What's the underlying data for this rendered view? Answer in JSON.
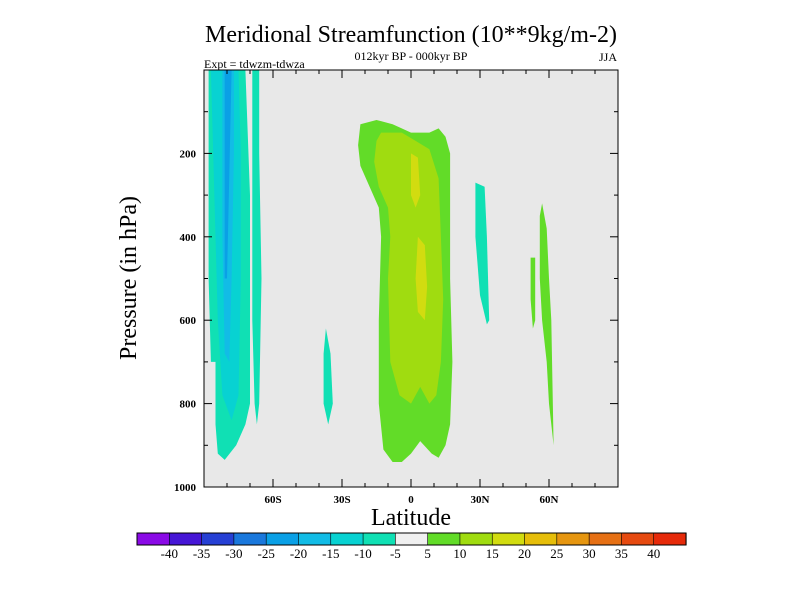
{
  "chart_data": {
    "type": "heatmap",
    "title": "Meridional Streamfunction (10**9kg/m-2)",
    "subtitle": "012kyr BP - 000kyr BP",
    "season": "JJA",
    "experiment": "Expt = tdwzm-tdwza",
    "xlabel": "Latitude",
    "ylabel": "Pressure (in hPa)",
    "xlim": [
      -90,
      90
    ],
    "ylim": [
      1000,
      0
    ],
    "x_ticks": [
      {
        "value": -60,
        "label": "60S"
      },
      {
        "value": -30,
        "label": "30S"
      },
      {
        "value": 0,
        "label": "0"
      },
      {
        "value": 30,
        "label": "30N"
      },
      {
        "value": 60,
        "label": "60N"
      }
    ],
    "y_ticks": [
      {
        "value": 200,
        "label": "200"
      },
      {
        "value": 400,
        "label": "400"
      },
      {
        "value": 600,
        "label": "600"
      },
      {
        "value": 800,
        "label": "800"
      },
      {
        "value": 1000,
        "label": "1000"
      }
    ],
    "background_color": "#e8e8e8",
    "colorbar": {
      "labels": [
        "-40",
        "-35",
        "-30",
        "-25",
        "-20",
        "-15",
        "-10",
        "-5",
        "5",
        "10",
        "15",
        "20",
        "25",
        "30",
        "35",
        "40"
      ],
      "colors": [
        "#8a0ae6",
        "#4616d6",
        "#2640d4",
        "#1a78dc",
        "#0aa0e6",
        "#12bce6",
        "#08d2d2",
        "#10e0b4",
        "#f0f0f0",
        "#62dc28",
        "#a0dc10",
        "#d2dc10",
        "#e6be0a",
        "#e69610",
        "#e67014",
        "#e64a10",
        "#e62a0a"
      ]
    },
    "regions": [
      {
        "level": "-10 to -5",
        "color": "#10e0b4",
        "polygon": [
          [
            -88,
            0
          ],
          [
            -72,
            0
          ],
          [
            -71,
            150
          ],
          [
            -70,
            300
          ],
          [
            -70,
            500
          ],
          [
            -70,
            800
          ],
          [
            -72,
            850
          ],
          [
            -76,
            900
          ],
          [
            -81,
            935
          ],
          [
            -84,
            920
          ],
          [
            -85,
            850
          ],
          [
            -85,
            700
          ],
          [
            -87,
            700
          ],
          [
            -88,
            500
          ]
        ]
      },
      {
        "level": "-15 to -10",
        "color": "#08d2d2",
        "polygon": [
          [
            -87,
            0
          ],
          [
            -75,
            0
          ],
          [
            -74,
            200
          ],
          [
            -74,
            500
          ],
          [
            -75,
            780
          ],
          [
            -78,
            840
          ],
          [
            -82,
            780
          ],
          [
            -84,
            600
          ],
          [
            -85,
            400
          ],
          [
            -86,
            200
          ]
        ]
      },
      {
        "level": "-20 to -15",
        "color": "#12bce6",
        "polygon": [
          [
            -82,
            0
          ],
          [
            -77,
            0
          ],
          [
            -77,
            200
          ],
          [
            -78,
            500
          ],
          [
            -79,
            700
          ],
          [
            -81,
            680
          ],
          [
            -82,
            400
          ]
        ]
      },
      {
        "level": "-25 to -20",
        "color": "#0aa0e6",
        "polygon": [
          [
            -81,
            0
          ],
          [
            -78,
            0
          ],
          [
            -79,
            250
          ],
          [
            -80,
            500
          ],
          [
            -81,
            500
          ],
          [
            -81,
            250
          ]
        ]
      },
      {
        "level": "-10 to -5",
        "color": "#10e0b4",
        "polygon": [
          [
            -69,
            0
          ],
          [
            -66,
            0
          ],
          [
            -66,
            200
          ],
          [
            -65,
            500
          ],
          [
            -66,
            800
          ],
          [
            -67,
            850
          ],
          [
            -68,
            800
          ],
          [
            -69,
            600
          ]
        ]
      },
      {
        "level": "-10 to -5",
        "color": "#10e0b4",
        "polygon": [
          [
            -37,
            620
          ],
          [
            -35,
            680
          ],
          [
            -34,
            800
          ],
          [
            -36,
            850
          ],
          [
            -38,
            800
          ],
          [
            -38,
            680
          ]
        ]
      },
      {
        "level": "5 to 10",
        "color": "#62dc28",
        "polygon": [
          [
            -22,
            130
          ],
          [
            -15,
            120
          ],
          [
            -8,
            130
          ],
          [
            0,
            150
          ],
          [
            8,
            150
          ],
          [
            12,
            140
          ],
          [
            15,
            160
          ],
          [
            17,
            200
          ],
          [
            17,
            300
          ],
          [
            17,
            500
          ],
          [
            18,
            700
          ],
          [
            17,
            850
          ],
          [
            15,
            900
          ],
          [
            12,
            930
          ],
          [
            9,
            920
          ],
          [
            4,
            890
          ],
          [
            0,
            920
          ],
          [
            -4,
            940
          ],
          [
            -8,
            940
          ],
          [
            -12,
            910
          ],
          [
            -14,
            800
          ],
          [
            -14,
            600
          ],
          [
            -13,
            400
          ],
          [
            -14,
            330
          ],
          [
            -18,
            280
          ],
          [
            -22,
            230
          ],
          [
            -23,
            180
          ]
        ]
      },
      {
        "level": "10 to 15",
        "color": "#a0dc10",
        "polygon": [
          [
            -13,
            150
          ],
          [
            -4,
            150
          ],
          [
            2,
            170
          ],
          [
            8,
            190
          ],
          [
            12,
            260
          ],
          [
            13,
            400
          ],
          [
            14,
            550
          ],
          [
            13,
            700
          ],
          [
            11,
            780
          ],
          [
            8,
            800
          ],
          [
            4,
            760
          ],
          [
            0,
            800
          ],
          [
            -5,
            780
          ],
          [
            -9,
            700
          ],
          [
            -10,
            500
          ],
          [
            -9,
            400
          ],
          [
            -10,
            330
          ],
          [
            -14,
            280
          ],
          [
            -16,
            220
          ],
          [
            -15,
            170
          ]
        ]
      },
      {
        "level": "15 to 20",
        "color": "#d2dc10",
        "polygon": [
          [
            0,
            200
          ],
          [
            3,
            210
          ],
          [
            4,
            300
          ],
          [
            2,
            330
          ],
          [
            0,
            300
          ]
        ]
      },
      {
        "level": "15 to 20",
        "color": "#d2dc10",
        "polygon": [
          [
            3,
            400
          ],
          [
            6,
            420
          ],
          [
            7,
            520
          ],
          [
            6,
            600
          ],
          [
            3,
            580
          ],
          [
            2,
            500
          ]
        ]
      },
      {
        "level": "-10 to -5",
        "color": "#10e0b4",
        "polygon": [
          [
            28,
            270
          ],
          [
            32,
            280
          ],
          [
            33,
            400
          ],
          [
            34,
            600
          ],
          [
            33,
            610
          ],
          [
            30,
            540
          ],
          [
            28,
            400
          ]
        ]
      },
      {
        "level": "5 to 10",
        "color": "#62dc28",
        "polygon": [
          [
            56,
            350
          ],
          [
            57,
            320
          ],
          [
            59,
            380
          ],
          [
            60,
            500
          ],
          [
            61,
            600
          ],
          [
            62,
            900
          ],
          [
            60,
            800
          ],
          [
            59,
            700
          ],
          [
            57,
            600
          ],
          [
            56,
            500
          ]
        ]
      },
      {
        "level": "5 to 10",
        "color": "#62dc28",
        "polygon": [
          [
            52,
            450
          ],
          [
            54,
            450
          ],
          [
            54,
            600
          ],
          [
            53,
            620
          ],
          [
            52,
            550
          ]
        ]
      }
    ]
  }
}
